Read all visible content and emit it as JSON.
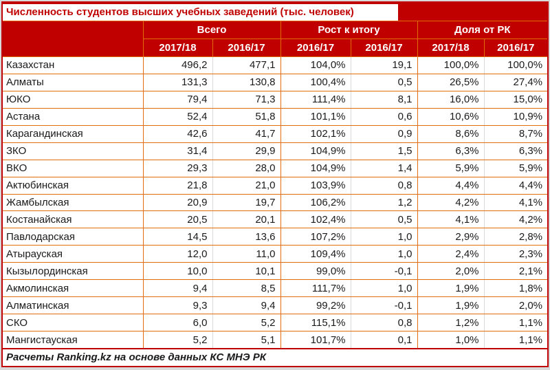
{
  "colors": {
    "header_bg": "#c00000",
    "outer_red": "#c00000",
    "border_orange": "#e26b0a",
    "border_gray": "#d9d9d9",
    "title_color": "#c00000",
    "text_color": "#1a1a1a"
  },
  "chart_data": {
    "type": "table",
    "title": "Численность студентов высших учебных заведений (тыс. человек)",
    "footer": "Расчеты Ranking.kz на основе данных КС МНЭ РК",
    "groups": [
      {
        "label": "Всего",
        "years": [
          "2017/18",
          "2016/17"
        ]
      },
      {
        "label": "Рост к итогу",
        "years": [
          "2016/17",
          "2016/17"
        ]
      },
      {
        "label": "Доля от РК",
        "years": [
          "2017/18",
          "2016/17"
        ]
      }
    ],
    "rows": [
      {
        "region": "Казахстан",
        "values": [
          "496,2",
          "477,1",
          "104,0%",
          "19,1",
          "100,0%",
          "100,0%"
        ]
      },
      {
        "region": "Алматы",
        "values": [
          "131,3",
          "130,8",
          "100,4%",
          "0,5",
          "26,5%",
          "27,4%"
        ]
      },
      {
        "region": "ЮКО",
        "values": [
          "79,4",
          "71,3",
          "111,4%",
          "8,1",
          "16,0%",
          "15,0%"
        ]
      },
      {
        "region": "Астана",
        "values": [
          "52,4",
          "51,8",
          "101,1%",
          "0,6",
          "10,6%",
          "10,9%"
        ]
      },
      {
        "region": "Карагандинская",
        "values": [
          "42,6",
          "41,7",
          "102,1%",
          "0,9",
          "8,6%",
          "8,7%"
        ]
      },
      {
        "region": "ЗКО",
        "values": [
          "31,4",
          "29,9",
          "104,9%",
          "1,5",
          "6,3%",
          "6,3%"
        ]
      },
      {
        "region": "ВКО",
        "values": [
          "29,3",
          "28,0",
          "104,9%",
          "1,4",
          "5,9%",
          "5,9%"
        ]
      },
      {
        "region": "Актюбинская",
        "values": [
          "21,8",
          "21,0",
          "103,9%",
          "0,8",
          "4,4%",
          "4,4%"
        ]
      },
      {
        "region": "Жамбылская",
        "values": [
          "20,9",
          "19,7",
          "106,2%",
          "1,2",
          "4,2%",
          "4,1%"
        ]
      },
      {
        "region": "Костанайская",
        "values": [
          "20,5",
          "20,1",
          "102,4%",
          "0,5",
          "4,1%",
          "4,2%"
        ]
      },
      {
        "region": "Павлодарская",
        "values": [
          "14,5",
          "13,6",
          "107,2%",
          "1,0",
          "2,9%",
          "2,8%"
        ]
      },
      {
        "region": "Атырауская",
        "values": [
          "12,0",
          "11,0",
          "109,4%",
          "1,0",
          "2,4%",
          "2,3%"
        ]
      },
      {
        "region": "Кызылординская",
        "values": [
          "10,0",
          "10,1",
          "99,0%",
          "-0,1",
          "2,0%",
          "2,1%"
        ]
      },
      {
        "region": "Акмолинская",
        "values": [
          "9,4",
          "8,5",
          "111,7%",
          "1,0",
          "1,9%",
          "1,8%"
        ]
      },
      {
        "region": "Алматинская",
        "values": [
          "9,3",
          "9,4",
          "99,2%",
          "-0,1",
          "1,9%",
          "2,0%"
        ]
      },
      {
        "region": "СКО",
        "values": [
          "6,0",
          "5,2",
          "115,1%",
          "0,8",
          "1,2%",
          "1,1%"
        ]
      },
      {
        "region": "Мангистауская",
        "values": [
          "5,2",
          "5,1",
          "101,7%",
          "0,1",
          "1,0%",
          "1,1%"
        ]
      }
    ]
  }
}
